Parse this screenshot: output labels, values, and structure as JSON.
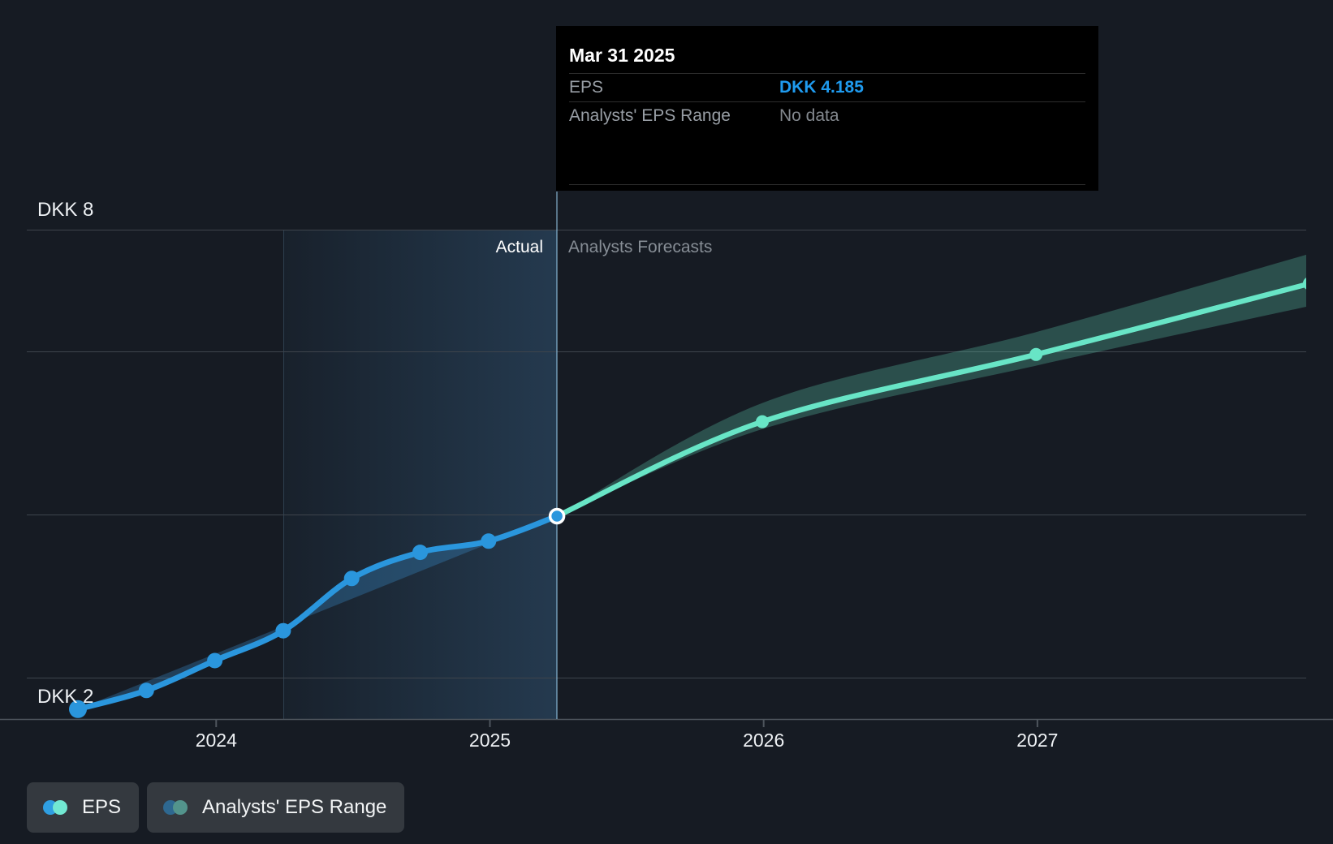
{
  "tooltip": {
    "title": "Mar 31 2025",
    "rows": [
      {
        "label": "EPS",
        "value": "DKK 4.185",
        "style": "accent"
      },
      {
        "label": "Analysts' EPS Range",
        "value": "No data",
        "style": "muted"
      }
    ]
  },
  "annotations": {
    "actual": "Actual",
    "forecast": "Analysts Forecasts"
  },
  "legend": [
    {
      "label": "EPS",
      "swatch_colors": [
        "#2f9fe2",
        "#72e8d2"
      ]
    },
    {
      "label": "Analysts' EPS Range",
      "swatch_colors": [
        "#2e6890",
        "#53948c"
      ]
    }
  ],
  "colors": {
    "background": "#161b23",
    "eps_line": "#2a96dd",
    "eps_band": "rgba(59,150,215,0.30)",
    "forecast_line": "#68e5c6",
    "forecast_band": "rgba(104,229,198,0.26)",
    "accent_value": "#1f9bef",
    "gridline": "#3e444c",
    "axis": "#4e555d",
    "divider": "rgba(151,203,235,0.50)",
    "highlight_left": "rgba(70,145,205,0.05)",
    "highlight_right": "rgba(80,150,210,0.25)"
  },
  "chart_data": {
    "type": "line",
    "title": "EPS actual vs analysts forecast",
    "unit": "DKK",
    "ylim": [
      1.5,
      8.5
    ],
    "y_axis_labels": [
      {
        "label": "DKK 8",
        "value": 8
      },
      {
        "label": "DKK 2",
        "value": 2
      }
    ],
    "x_year_ticks": [
      {
        "label": "2024",
        "t": 2.02
      },
      {
        "label": "2025",
        "t": 6.02
      },
      {
        "label": "2026",
        "t": 10.02
      },
      {
        "label": "2027",
        "t": 14.02
      }
    ],
    "series": [
      {
        "name": "EPS",
        "kind": "actual",
        "points": [
          {
            "date": "Jun 30 2023",
            "t": 0,
            "value": 1.6
          },
          {
            "date": "Sep 30 2023",
            "t": 1,
            "value": 1.85
          },
          {
            "date": "Dec 31 2023",
            "t": 2,
            "value": 2.25
          },
          {
            "date": "Mar 31 2024",
            "t": 3,
            "value": 2.65
          },
          {
            "date": "Jun 30 2024",
            "t": 4,
            "value": 3.35
          },
          {
            "date": "Sep 30 2024",
            "t": 5,
            "value": 3.7
          },
          {
            "date": "Dec 31 2024",
            "t": 6,
            "value": 3.85
          },
          {
            "date": "Mar 31 2025",
            "t": 7,
            "value": 4.185
          }
        ]
      },
      {
        "name": "Analysts Forecast EPS",
        "kind": "forecast",
        "points": [
          {
            "date": "Mar 31 2025",
            "t": 7,
            "value": 4.185,
            "low": 4.185,
            "high": 4.185
          },
          {
            "date": "Dec 31 2025",
            "t": 10,
            "value": 5.45,
            "low": 5.35,
            "high": 5.7
          },
          {
            "date": "Dec 31 2026",
            "t": 14,
            "value": 6.35,
            "low": 6.2,
            "high": 6.65
          },
          {
            "date": "Dec 31 2027",
            "t": 18,
            "value": 7.3,
            "low": 7.0,
            "high": 7.7
          }
        ]
      }
    ]
  }
}
